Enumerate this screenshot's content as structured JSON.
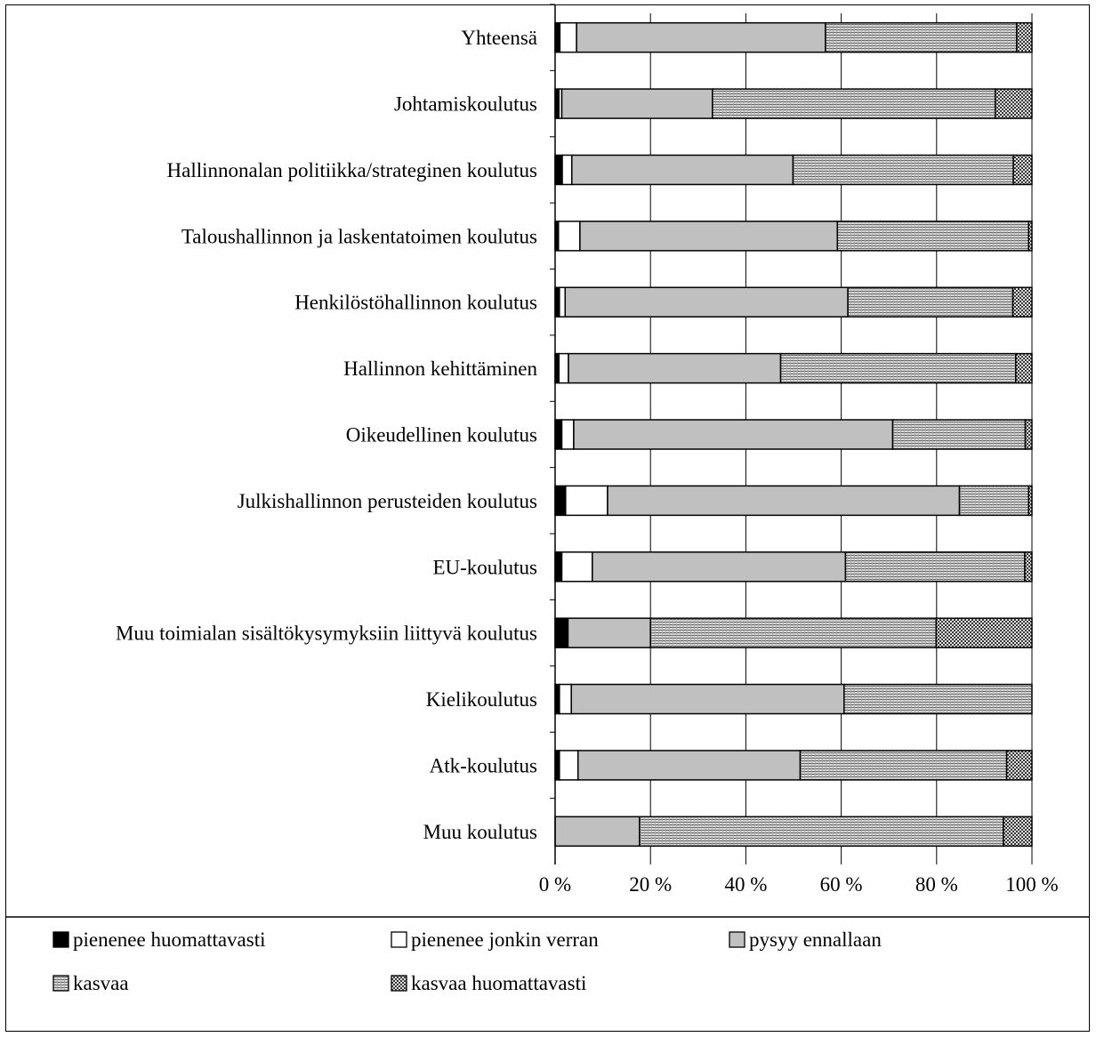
{
  "chart_data": {
    "type": "bar",
    "orientation": "horizontal",
    "stacked": true,
    "percent": true,
    "categories": [
      "Yhteensä",
      "Johtamiskoulutus",
      "Hallinnonalan politiikka/strateginen koulutus",
      "Taloushallinnon ja laskentatoimen koulutus",
      "Henkilöstöhallinnon koulutus",
      "Hallinnon kehittäminen",
      "Oikeudellinen koulutus",
      "Julkishallinnon perusteiden koulutus",
      "EU-koulutus",
      "Muu toimialan sisältökysymyksiin liittyvä koulutus",
      "Kielikoulutus",
      "Atk-koulutus",
      "Muu koulutus"
    ],
    "series": [
      {
        "name": "pienenee huomattavasti",
        "values": [
          1.0,
          0.8,
          1.5,
          0.7,
          0.9,
          0.8,
          1.4,
          2.2,
          1.4,
          2.7,
          0.9,
          0.9,
          0.0
        ]
      },
      {
        "name": "pienenee jonkin verran",
        "values": [
          3.5,
          0.6,
          2.0,
          4.5,
          1.2,
          2.0,
          2.5,
          8.8,
          6.4,
          0.0,
          2.5,
          3.9,
          0.0
        ]
      },
      {
        "name": "pysyy ennallaan",
        "values": [
          52.2,
          31.6,
          46.4,
          54.0,
          59.3,
          44.5,
          66.9,
          73.8,
          53.1,
          17.3,
          57.2,
          46.6,
          17.7
        ]
      },
      {
        "name": "kasvaa",
        "values": [
          40.1,
          59.3,
          46.2,
          40.1,
          34.6,
          49.3,
          27.8,
          14.5,
          37.6,
          59.9,
          39.4,
          43.3,
          76.3
        ]
      },
      {
        "name": "kasvaa huomattavasti",
        "values": [
          3.2,
          7.7,
          3.9,
          0.7,
          4.0,
          3.4,
          1.4,
          0.7,
          1.5,
          20.1,
          0.0,
          5.3,
          6.0
        ]
      }
    ],
    "series_styles": [
      {
        "fill": "#000000",
        "pattern": "solid"
      },
      {
        "fill": "#ffffff",
        "pattern": "solid"
      },
      {
        "fill": "#c0c0c0",
        "pattern": "solid"
      },
      {
        "fill": "#c8c8c8",
        "pattern": "hlines"
      },
      {
        "fill": "#b4b4b4",
        "pattern": "checker"
      }
    ],
    "x_ticks": [
      "0 %",
      "20 %",
      "40 %",
      "60 %",
      "80 %",
      "100 %"
    ],
    "xlim": [
      0,
      100
    ],
    "grid": true,
    "legend_position": "bottom"
  }
}
